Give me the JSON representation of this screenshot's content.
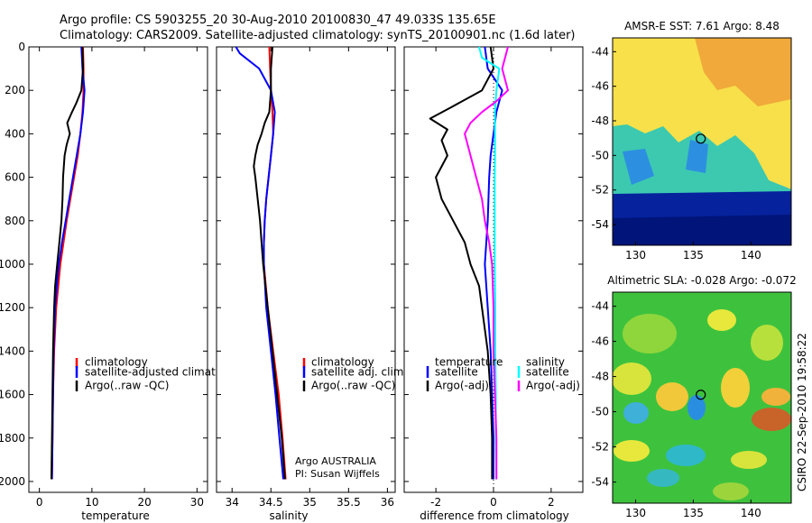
{
  "title": {
    "line1": "Argo profile: CS 5903255_20 30-Aug-2010 20100830_47 49.033S 135.65E",
    "line2": "Climatology: CARS2009. Satellite-adjusted climatology: synTS_20100901.nc (1.6d later)"
  },
  "side_credit": "CSIRO 22-Sep-2010 19:58:22",
  "colors": {
    "red": "#ff0000",
    "blue": "#0000ff",
    "black": "#000000",
    "cyan": "#00ffff",
    "magenta": "#ff00ff"
  },
  "chart_data": [
    {
      "type": "line",
      "id": "temperature",
      "xlabel": "temperature",
      "xlim": [
        -2,
        32
      ],
      "ylim": [
        0,
        2050
      ],
      "xticks": [
        0,
        10,
        20,
        30
      ],
      "yticks": [
        0,
        200,
        400,
        600,
        800,
        1000,
        1200,
        1400,
        1600,
        1800,
        2000
      ],
      "legend": [
        "climatology",
        "satellite-adjusted climatology",
        "Argo(..raw -QC)"
      ],
      "series": [
        {
          "name": "climatology",
          "color": "red",
          "depth": [
            0,
            100,
            200,
            300,
            400,
            500,
            600,
            700,
            800,
            900,
            1000,
            1100,
            1200,
            1400,
            1600,
            1800,
            1990
          ],
          "values": [
            8.3,
            8.4,
            8.4,
            8.2,
            7.8,
            7.3,
            6.6,
            5.9,
            5.2,
            4.6,
            4.0,
            3.6,
            3.2,
            2.8,
            2.6,
            2.5,
            2.4
          ]
        },
        {
          "name": "satellite-adjusted climatology",
          "color": "blue",
          "depth": [
            0,
            100,
            200,
            300,
            400,
            500,
            600,
            700,
            800,
            900,
            1000,
            1100,
            1200,
            1400,
            1600,
            1800,
            1990
          ],
          "values": [
            8.0,
            8.2,
            8.6,
            8.3,
            7.8,
            7.1,
            6.4,
            5.7,
            5.0,
            4.3,
            3.7,
            3.3,
            3.0,
            2.7,
            2.6,
            2.5,
            2.4
          ]
        },
        {
          "name": "Argo(..raw -QC)",
          "color": "black",
          "depth": [
            0,
            100,
            200,
            260,
            300,
            350,
            400,
            450,
            500,
            600,
            700,
            800,
            900,
            1000,
            1100,
            1200,
            1400,
            1600,
            1800,
            1990
          ],
          "values": [
            8.2,
            8.3,
            8.0,
            7.0,
            6.2,
            5.3,
            5.8,
            5.2,
            4.8,
            4.5,
            4.4,
            4.2,
            3.8,
            3.4,
            3.0,
            2.8,
            2.6,
            2.5,
            2.4,
            2.3
          ]
        }
      ]
    },
    {
      "type": "line",
      "id": "salinity",
      "xlabel": "salinity",
      "xlim": [
        33.8,
        36.1
      ],
      "ylim": [
        0,
        2050
      ],
      "xticks": [
        34,
        34.5,
        35,
        35.5,
        36
      ],
      "legend": [
        "climatology",
        "satellite adj. clim.",
        "Argo(..raw -QC)"
      ],
      "annotation": [
        "Argo AUSTRALIA",
        "PI: Susan Wijffels"
      ],
      "series": [
        {
          "name": "climatology",
          "color": "red",
          "depth": [
            0,
            100,
            200,
            300,
            400,
            500,
            600,
            700,
            800,
            900,
            1000,
            1200,
            1400,
            1600,
            1800,
            1990
          ],
          "values": [
            34.48,
            34.49,
            34.5,
            34.52,
            34.53,
            34.5,
            34.47,
            34.44,
            34.42,
            34.41,
            34.41,
            34.46,
            34.53,
            34.6,
            34.65,
            34.69
          ]
        },
        {
          "name": "satellite adj. clim.",
          "color": "blue",
          "depth": [
            0,
            30,
            100,
            200,
            300,
            400,
            500,
            600,
            700,
            800,
            900,
            1000,
            1200,
            1400,
            1600,
            1800,
            1990
          ],
          "values": [
            34.05,
            34.1,
            34.35,
            34.5,
            34.55,
            34.53,
            34.5,
            34.47,
            34.44,
            34.42,
            34.41,
            34.41,
            34.44,
            34.5,
            34.56,
            34.61,
            34.66
          ]
        },
        {
          "name": "Argo(..raw -QC)",
          "color": "black",
          "depth": [
            0,
            100,
            200,
            300,
            350,
            400,
            450,
            500,
            550,
            600,
            700,
            800,
            900,
            1000,
            1200,
            1400,
            1600,
            1800,
            1990
          ],
          "values": [
            34.52,
            34.5,
            34.5,
            34.48,
            34.42,
            34.38,
            34.33,
            34.3,
            34.28,
            34.3,
            34.33,
            34.36,
            34.38,
            34.4,
            34.46,
            34.52,
            34.58,
            34.64,
            34.68
          ]
        }
      ]
    },
    {
      "type": "line",
      "id": "difference",
      "xlabel": "difference from climatology",
      "xlim": [
        -3.1,
        3.1
      ],
      "ylim": [
        0,
        2050
      ],
      "xticks": [
        -2,
        0,
        2
      ],
      "legend_temperature": [
        "temperature",
        "satellite",
        "Argo(-adj)"
      ],
      "legend_salinity": [
        "salinity",
        "satellite",
        "Argo(-adj)"
      ],
      "series": [
        {
          "name": "temperature satellite",
          "color": "blue",
          "depth": [
            0,
            100,
            200,
            300,
            400,
            500,
            600,
            800,
            1000,
            1200,
            1400,
            1600,
            1800,
            1990
          ],
          "values": [
            -0.3,
            -0.2,
            0.3,
            0.1,
            0.0,
            -0.1,
            -0.15,
            -0.2,
            -0.3,
            -0.2,
            -0.1,
            -0.05,
            0.0,
            0.0
          ]
        },
        {
          "name": "temperature Argo(-adj)",
          "color": "black",
          "depth": [
            0,
            100,
            200,
            280,
            330,
            380,
            430,
            500,
            600,
            700,
            800,
            900,
            1000,
            1100,
            1200,
            1400,
            1600,
            1800,
            1990
          ],
          "values": [
            -0.1,
            0.0,
            -0.4,
            -1.5,
            -2.2,
            -1.6,
            -1.8,
            -1.6,
            -2.0,
            -1.8,
            -1.4,
            -1.0,
            -0.8,
            -0.5,
            -0.4,
            -0.2,
            -0.1,
            -0.05,
            -0.05
          ]
        },
        {
          "name": "salinity satellite",
          "color": "cyan",
          "depth": [
            0,
            50,
            100,
            200,
            300,
            400,
            500,
            600,
            800,
            1000,
            1200,
            1400,
            1600,
            1800,
            1990
          ],
          "values": [
            -0.5,
            -0.4,
            0.2,
            0.1,
            0.05,
            0.05,
            0.05,
            0.04,
            0.04,
            0.04,
            0.06,
            0.06,
            0.08,
            0.08,
            0.1
          ]
        },
        {
          "name": "salinity Argo(-adj)",
          "color": "magenta",
          "depth": [
            0,
            100,
            200,
            250,
            300,
            350,
            400,
            450,
            500,
            600,
            700,
            800,
            900,
            1000,
            1200,
            1400,
            1600,
            1800,
            1990
          ],
          "values": [
            0.5,
            0.3,
            0.5,
            0.1,
            -0.4,
            -0.8,
            -1.0,
            -0.9,
            -0.8,
            -0.6,
            -0.4,
            -0.3,
            -0.15,
            -0.05,
            0.0,
            0.0,
            0.05,
            0.1,
            0.1
          ]
        }
      ]
    },
    {
      "type": "heatmap",
      "id": "sst_map",
      "title": "AMSR-E SST: 7.61  Argo: 8.48",
      "xlim": [
        128,
        143.5
      ],
      "ylim": [
        -55.2,
        -43.2
      ],
      "xticks": [
        130,
        135,
        140
      ],
      "yticks": [
        -44,
        -46,
        -48,
        -50,
        -52,
        -54
      ],
      "marker": {
        "lon": 135.65,
        "lat": -49.033
      }
    },
    {
      "type": "heatmap",
      "id": "sla_map",
      "title": "Altimetric SLA: -0.028  Argo: -0.072",
      "xlim": [
        128,
        143.5
      ],
      "ylim": [
        -55.2,
        -43.2
      ],
      "xticks": [
        130,
        135,
        140
      ],
      "yticks": [
        -44,
        -46,
        -48,
        -50,
        -52,
        -54
      ],
      "marker": {
        "lon": 135.65,
        "lat": -49.033
      }
    }
  ]
}
